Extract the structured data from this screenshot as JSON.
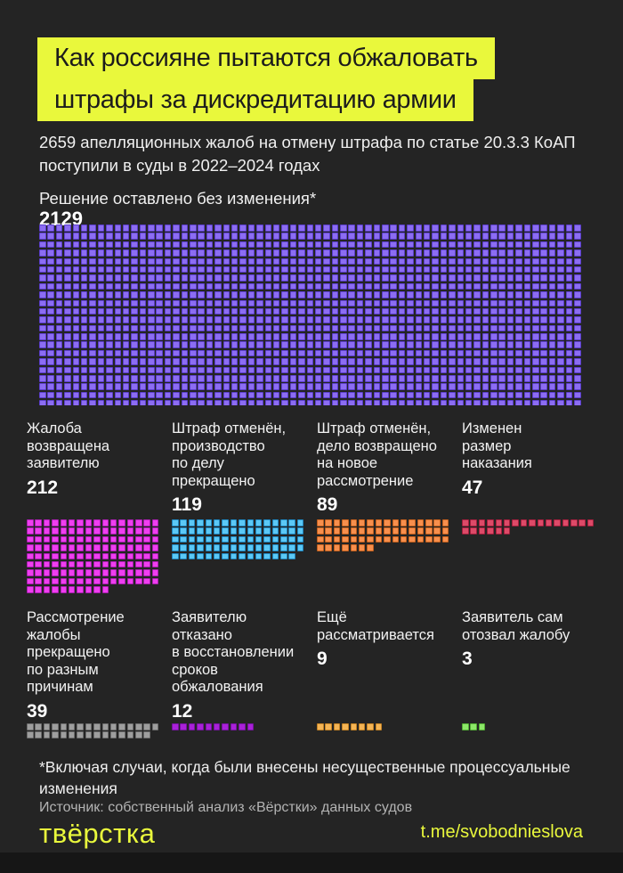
{
  "page": {
    "background": "#242424",
    "accent_yellow": "#e9f83c",
    "text_color": "#f2f2f2",
    "muted_text_color": "#b3b3b3"
  },
  "title": {
    "line1": "Как россияне пытаются обжаловать",
    "line2": "штрафы за дискредитацию армии"
  },
  "subtitle": "2659 апелляционных жалоб на отмену штрафа по статье 20.3.3 КоАП\nпоступили в суды в 2022–2024 годах",
  "footnote": "*Включая случаи, когда были внесены несущественные процессуальные\nизменения",
  "source": "Источник: собственный анализ «Вёрстки» данных судов",
  "footer": {
    "logo": "твёрстка",
    "link": "t.me/svobodnieslova"
  },
  "chart_data": {
    "type": "waffle",
    "title": "Как россияне пытаются обжаловать штрафы за дискредитацию армии",
    "total_appeals": 2659,
    "period": "2022–2024",
    "legend_position": "labels-above-each-waffle",
    "categories": [
      {
        "id": "unchanged",
        "label": "Решение оставлено без изменения*",
        "value": "2129",
        "colors": {
          "fill": "#8c6df2",
          "border": "#5b3ecb"
        },
        "grid": {
          "columns": 65,
          "cells": 1430
        }
      },
      {
        "id": "returned-to-applicant",
        "label": "Жалоба\nвозвращена\nзаявителю",
        "value": "212",
        "colors": {
          "fill": "#ef3ef0",
          "border": "#a81fae"
        },
        "grid": {
          "columns": 16,
          "cells": 138
        }
      },
      {
        "id": "fine-cancelled-case-closed",
        "label": "Штраф отменён,\nпроизводство\nпо делу\nпрекращено",
        "value": "119",
        "colors": {
          "fill": "#5bc8f5",
          "border": "#1f85bd"
        },
        "grid": {
          "columns": 16,
          "cells": 79
        }
      },
      {
        "id": "fine-cancelled-new-review",
        "label": "Штраф отменён,\nдело возвращено\nна новое\nрассмотрение",
        "value": "89",
        "colors": {
          "fill": "#f78f4d",
          "border": "#c25f1d"
        },
        "grid": {
          "columns": 16,
          "cells": 55
        }
      },
      {
        "id": "penalty-size-changed",
        "label": "Изменен\nразмер\nнаказания",
        "value": "47",
        "colors": {
          "fill": "#dd4a68",
          "border": "#a21f3d"
        },
        "grid": {
          "columns": 16,
          "cells": 22
        }
      },
      {
        "id": "review-terminated-various",
        "label": "Рассмотрение\nжалобы\nпрекращено\nпо разным\nпричинам",
        "value": "39",
        "colors": {
          "fill": "#9e9e9e",
          "border": "#6c6c6c"
        },
        "grid": {
          "columns": 16,
          "cells": 31
        }
      },
      {
        "id": "restoration-denied",
        "label": "Заявителю\nотказано\nв восстановлении\nсроков\nобжалования",
        "value": "12",
        "colors": {
          "fill": "#a921d8",
          "border": "#7612a0"
        },
        "grid": {
          "columns": 16,
          "cells": 10
        }
      },
      {
        "id": "still-pending",
        "label": "Ещё\nрассматривается",
        "value": "9",
        "colors": {
          "fill": "#f4b455",
          "border": "#c38224"
        },
        "grid": {
          "columns": 16,
          "cells": 8
        }
      },
      {
        "id": "withdrawn-by-applicant",
        "label": "Заявитель сам\nотозвал жалобу",
        "value": "3",
        "colors": {
          "fill": "#8ce768",
          "border": "#53ad35"
        },
        "grid": {
          "columns": 16,
          "cells": 3
        }
      }
    ]
  }
}
